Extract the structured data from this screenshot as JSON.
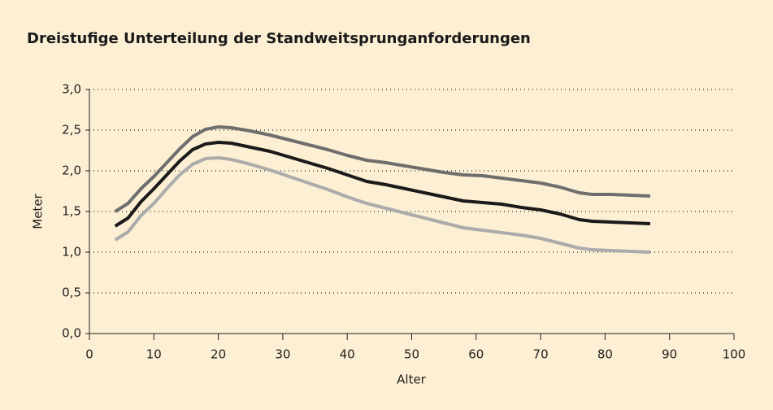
{
  "chart_data": {
    "type": "line",
    "title": "Dreistufige Unterteilung der Standweitsprunganforderungen",
    "x_label": "Alter",
    "y_label": "Meter",
    "x": [
      4,
      6,
      8,
      10,
      12,
      14,
      16,
      18,
      20,
      22,
      25,
      28,
      31,
      34,
      37,
      40,
      43,
      46,
      49,
      52,
      55,
      58,
      61,
      64,
      67,
      70,
      73,
      76,
      78,
      81,
      84,
      87
    ],
    "series": [
      {
        "color": "#6e6e6e",
        "values": [
          1.5,
          1.6,
          1.78,
          1.93,
          2.1,
          2.27,
          2.42,
          2.51,
          2.54,
          2.53,
          2.49,
          2.44,
          2.38,
          2.32,
          2.26,
          2.19,
          2.13,
          2.1,
          2.06,
          2.02,
          1.98,
          1.95,
          1.94,
          1.91,
          1.88,
          1.85,
          1.8,
          1.73,
          1.71,
          1.71,
          1.7,
          1.69
        ]
      },
      {
        "color": "#1a1a1a",
        "values": [
          1.32,
          1.42,
          1.62,
          1.78,
          1.95,
          2.12,
          2.26,
          2.33,
          2.35,
          2.34,
          2.29,
          2.24,
          2.17,
          2.1,
          2.03,
          1.95,
          1.87,
          1.83,
          1.78,
          1.73,
          1.68,
          1.63,
          1.61,
          1.59,
          1.55,
          1.52,
          1.47,
          1.4,
          1.38,
          1.37,
          1.36,
          1.35
        ]
      },
      {
        "color": "#ababab",
        "values": [
          1.15,
          1.25,
          1.45,
          1.6,
          1.78,
          1.95,
          2.08,
          2.15,
          2.16,
          2.14,
          2.08,
          2.01,
          1.93,
          1.85,
          1.77,
          1.68,
          1.6,
          1.54,
          1.48,
          1.42,
          1.36,
          1.3,
          1.27,
          1.24,
          1.21,
          1.17,
          1.11,
          1.05,
          1.03,
          1.02,
          1.01,
          1.0
        ]
      }
    ],
    "xlim": [
      0,
      100
    ],
    "xticks": [
      0,
      10,
      20,
      30,
      40,
      50,
      60,
      70,
      80,
      90,
      100
    ],
    "ylim": [
      0,
      3
    ],
    "yticks": [
      {
        "value": 0,
        "label": "0,0"
      },
      {
        "value": 0.5,
        "label": "0,5"
      },
      {
        "value": 1,
        "label": "1,0"
      },
      {
        "value": 1.5,
        "label": "1,5"
      },
      {
        "value": 2,
        "label": "2,0"
      },
      {
        "value": 2.5,
        "label": "2,5"
      },
      {
        "value": 3,
        "label": "3,0"
      }
    ],
    "grid": true
  }
}
